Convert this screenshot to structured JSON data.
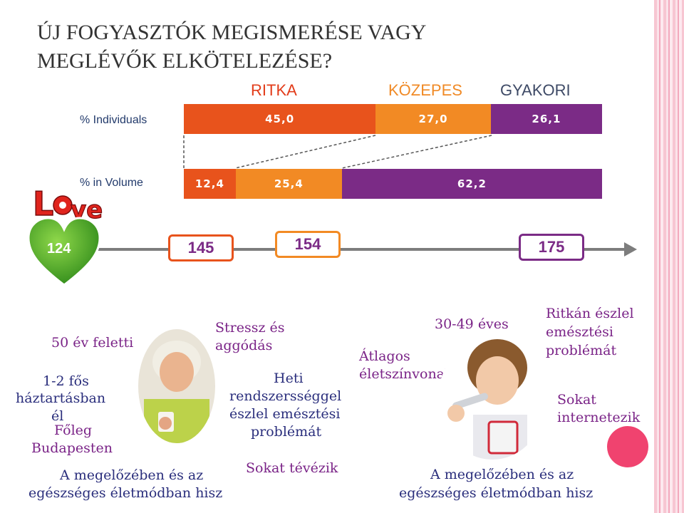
{
  "title": {
    "line1": "ÚJ FOGYASZTÓK MEGISMERÉSE VAGY",
    "line2": "MEGLÉVŐK ELKÖTELEZÉSE?"
  },
  "chart_data": {
    "type": "bar",
    "orientation": "horizontal-stacked",
    "categories": [
      "RITKA",
      "KÖZEPES",
      "GYAKORI"
    ],
    "series": [
      {
        "name": "% Individuals",
        "values": [
          45.0,
          27.0,
          26.1
        ],
        "labels": [
          "45,0",
          "27,0",
          "26,1"
        ]
      },
      {
        "name": "% in Volume",
        "values": [
          12.4,
          25.4,
          62.2
        ],
        "labels": [
          "12,4",
          "25,4",
          "62,2"
        ]
      }
    ],
    "colors": [
      "#e8531c",
      "#f28a24",
      "#7b2b86"
    ],
    "scale": {
      "labels": [
        "124",
        "145",
        "154",
        "175"
      ]
    }
  },
  "icons": {
    "love": "love-logo",
    "heart": "heart-icon",
    "arrow": "arrow-icon",
    "woman1": "elderly-woman-photo",
    "woman2": "young-woman-photo"
  },
  "left_profile": {
    "age": "50 év feletti",
    "household": [
      "1-2 fős",
      "háztartásban",
      "él"
    ],
    "city": [
      "Főleg",
      "Budapesten"
    ],
    "stress": [
      "Stressz és",
      "aggódás"
    ],
    "digest": [
      "Heti",
      "rendszersséggel",
      "észlel emésztési",
      "problémát"
    ],
    "tv": "Sokat tévézik",
    "health": [
      "A megelőzében és az",
      "egészséges életmódban  hisz"
    ]
  },
  "right_profile": {
    "age": "30-49 éves",
    "living": [
      "Átlagos",
      "életszínvonal"
    ],
    "digest": [
      "Ritkán észlel",
      "emésztési",
      "problémát"
    ],
    "internet": [
      "Sokat",
      "internetezik"
    ],
    "health": [
      "A megelőzében és az",
      "egészséges életmódban  hisz"
    ]
  }
}
